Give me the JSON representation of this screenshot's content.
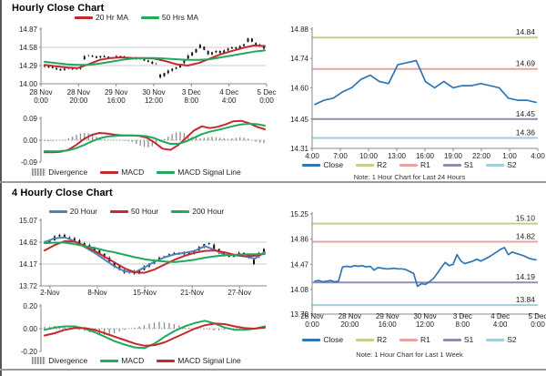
{
  "page": {
    "top_section_title": "Hourly Close Chart",
    "bottom_section_title": "4 Hourly Close Chart",
    "colors": {
      "red_ma": "#c4292e",
      "green_ma": "#22a85c",
      "blue_ma": "#4f81bd",
      "close_line": "#2e75b6",
      "r2": "#c6cd8d",
      "r1": "#e6a3a3",
      "s1": "#968bab",
      "s2": "#a3cdd9",
      "divergence": "#8c8c8c",
      "grid": "#cdcdcd",
      "axis": "#8a8a8a"
    }
  },
  "chart_data": [
    {
      "id": "hourly_close",
      "type": "candlestick",
      "title": "Hourly Close Chart",
      "y_ticks": [
        14.87,
        14.58,
        14.29,
        14.0
      ],
      "ylim": [
        14.0,
        14.87
      ],
      "gridlines": [
        14.58,
        14.29
      ],
      "x_labels": [
        "28 Nov|0:00",
        "28 Nov|20:00",
        "29 Nov|16:00",
        "30 Nov|12:00",
        "3 Dec|8:00",
        "4 Dec|4:00",
        "5 Dec|0:00"
      ],
      "close": [
        14.28,
        14.27,
        14.25,
        14.23,
        14.22,
        14.24,
        14.25,
        14.23,
        14.24,
        14.26,
        14.44,
        14.45,
        14.43,
        14.42,
        14.44,
        14.43,
        14.41,
        14.42,
        14.44,
        14.43,
        14.42,
        14.41,
        14.4,
        14.41,
        14.39,
        14.37,
        14.35,
        14.32,
        14.33,
        14.1,
        14.17,
        14.21,
        14.24,
        14.26,
        14.3,
        14.38,
        14.45,
        14.5,
        14.55,
        14.62,
        14.54,
        14.47,
        14.5,
        14.52,
        14.49,
        14.53,
        14.56,
        14.58,
        14.56,
        14.6,
        14.63,
        14.72,
        14.67,
        14.6,
        14.62,
        14.56
      ],
      "series": [
        {
          "name": "20 Hr MA",
          "color": "#c4292e",
          "values": [
            14.3,
            14.28,
            14.26,
            14.25,
            14.31,
            14.38,
            14.41,
            14.42,
            14.41,
            14.41,
            14.4,
            14.36,
            14.31,
            14.29,
            14.33,
            14.4,
            14.47,
            14.52,
            14.57,
            14.61,
            14.6
          ]
        },
        {
          "name": "50 Hrs MA",
          "color": "#22a85c",
          "values": [
            14.35,
            14.33,
            14.31,
            14.3,
            14.3,
            14.32,
            14.35,
            14.38,
            14.4,
            14.41,
            14.41,
            14.4,
            14.39,
            14.38,
            14.38,
            14.39,
            14.42,
            14.45,
            14.48,
            14.51,
            14.53
          ]
        }
      ],
      "legend": [
        {
          "label": "20 Hr MA",
          "color": "#c4292e",
          "type": "line"
        },
        {
          "label": "50 Hrs MA",
          "color": "#22a85c",
          "type": "line"
        }
      ]
    },
    {
      "id": "hourly_macd",
      "type": "bar+line",
      "y_ticks": [
        0.09,
        0.0,
        -0.09
      ],
      "ylim": [
        -0.09,
        0.09
      ],
      "divergence": [
        -0.004,
        -0.004,
        -0.003,
        -0.002,
        0.0,
        0.002,
        0.008,
        0.015,
        0.022,
        0.028,
        0.03,
        0.028,
        0.022,
        0.015,
        0.008,
        0.004,
        0.002,
        0.001,
        0.0,
        -0.001,
        -0.002,
        -0.004,
        -0.008,
        -0.015,
        -0.022,
        -0.028,
        -0.03,
        -0.025,
        -0.015,
        -0.005,
        0.005,
        0.015,
        0.025,
        0.032,
        0.035,
        0.03,
        0.022,
        0.015,
        0.01,
        0.008,
        0.01,
        0.012,
        0.014,
        0.012,
        0.01,
        0.008,
        0.006,
        0.008,
        0.01,
        0.012,
        0.01,
        0.006,
        0.0,
        -0.006,
        -0.01,
        -0.012
      ],
      "series": [
        {
          "name": "MACD",
          "color": "#c4292e",
          "values": [
            -0.05,
            -0.05,
            -0.048,
            -0.04,
            -0.02,
            0.005,
            0.022,
            0.03,
            0.027,
            0.022,
            0.02,
            0.02,
            0.018,
            0.01,
            -0.01,
            -0.035,
            -0.04,
            -0.02,
            0.01,
            0.04,
            0.057,
            0.05,
            0.055,
            0.065,
            0.078,
            0.08,
            0.07,
            0.055,
            0.045
          ]
        },
        {
          "name": "MACD Signal Line",
          "color": "#22a85c",
          "values": [
            -0.045,
            -0.046,
            -0.045,
            -0.042,
            -0.033,
            -0.02,
            -0.005,
            0.008,
            0.015,
            0.018,
            0.019,
            0.02,
            0.019,
            0.016,
            0.008,
            -0.005,
            -0.015,
            -0.015,
            -0.005,
            0.01,
            0.025,
            0.035,
            0.042,
            0.05,
            0.058,
            0.065,
            0.068,
            0.066,
            0.06
          ]
        }
      ],
      "legend": [
        {
          "label": "Divergence",
          "color": "#8c8c8c",
          "type": "bars"
        },
        {
          "label": "MACD",
          "color": "#c4292e",
          "type": "line"
        },
        {
          "label": "MACD Signal Line",
          "color": "#22a85c",
          "type": "line"
        }
      ]
    },
    {
      "id": "levels_24h",
      "type": "line",
      "note": "Note: 1 Hour Chart for Last 24 Hours",
      "y_ticks": [
        14.88,
        14.74,
        14.6,
        14.45,
        14.31
      ],
      "ylim": [
        14.31,
        14.88
      ],
      "x_labels": [
        "4:00",
        "7:00",
        "10:00",
        "13:00",
        "16:00",
        "19:00",
        "22:00",
        "1:00",
        "4:00"
      ],
      "close": [
        14.52,
        14.54,
        14.55,
        14.58,
        14.6,
        14.64,
        14.66,
        14.63,
        14.62,
        14.71,
        14.72,
        14.73,
        14.63,
        14.6,
        14.63,
        14.6,
        14.61,
        14.61,
        14.62,
        14.61,
        14.6,
        14.55,
        14.54,
        14.54,
        14.53
      ],
      "close_color": "#2e75b6",
      "levels": [
        {
          "name": "R2",
          "value": 14.84,
          "color": "#c6cd8d"
        },
        {
          "name": "R1",
          "value": 14.69,
          "color": "#e6a3a3"
        },
        {
          "name": "S1",
          "value": 14.45,
          "color": "#968bab"
        },
        {
          "name": "S2",
          "value": 14.36,
          "color": "#a3cdd9"
        }
      ],
      "legend": [
        {
          "label": "Close",
          "color": "#2e75b6",
          "type": "line"
        },
        {
          "label": "R2",
          "color": "#c6cd8d",
          "type": "line"
        },
        {
          "label": "R1",
          "color": "#e6a3a3",
          "type": "line"
        },
        {
          "label": "S1",
          "color": "#968bab",
          "type": "line"
        },
        {
          "label": "S2",
          "color": "#a3cdd9",
          "type": "line"
        }
      ]
    },
    {
      "id": "four_hourly_close",
      "type": "candlestick",
      "title": "4 Hourly Close Chart",
      "y_ticks": [
        15.07,
        14.62,
        14.17,
        13.72
      ],
      "ylim": [
        13.72,
        15.07
      ],
      "gridlines": [
        14.62,
        14.17
      ],
      "x_labels": [
        "2-Nov",
        "8-Nov",
        "15-Nov",
        "21-Nov",
        "27-Nov"
      ],
      "x_positions": [
        0.04,
        0.25,
        0.46,
        0.67,
        0.88
      ],
      "close": [
        14.62,
        14.66,
        14.74,
        14.77,
        14.72,
        14.7,
        14.66,
        14.6,
        14.56,
        14.5,
        14.45,
        14.38,
        14.3,
        14.22,
        14.12,
        14.05,
        13.99,
        14.02,
        13.97,
        14.05,
        14.12,
        14.18,
        14.25,
        14.3,
        14.33,
        14.37,
        14.4,
        14.37,
        14.42,
        14.38,
        14.45,
        14.52,
        14.58,
        14.6,
        14.48,
        14.4,
        14.35,
        14.32,
        14.36,
        14.4,
        14.36,
        14.3,
        14.17,
        14.4,
        14.48
      ],
      "series": [
        {
          "name": "20 Hour",
          "color": "#4f81bd",
          "values": [
            14.62,
            14.7,
            14.72,
            14.64,
            14.52,
            14.4,
            14.26,
            14.12,
            14.02,
            14.0,
            14.1,
            14.22,
            14.31,
            14.37,
            14.4,
            14.44,
            14.54,
            14.46,
            14.36,
            14.35,
            14.33,
            14.28,
            14.42
          ]
        },
        {
          "name": "50 Hour",
          "color": "#c4292e",
          "values": [
            14.45,
            14.56,
            14.64,
            14.63,
            14.55,
            14.44,
            14.32,
            14.2,
            14.08,
            14.0,
            13.99,
            14.06,
            14.16,
            14.26,
            14.34,
            14.4,
            14.44,
            14.45,
            14.41,
            14.36,
            14.33,
            14.34,
            14.38
          ]
        },
        {
          "name": "200 Hour",
          "color": "#22a85c",
          "values": [
            14.6,
            14.61,
            14.61,
            14.58,
            14.54,
            14.5,
            14.45,
            14.41,
            14.36,
            14.31,
            14.27,
            14.24,
            14.22,
            14.21,
            14.23,
            14.26,
            14.3,
            14.33,
            14.35,
            14.36,
            14.37,
            14.37,
            14.38
          ]
        }
      ],
      "legend": [
        {
          "label": "20 Hour",
          "color": "#4f81bd",
          "type": "line"
        },
        {
          "label": "50 Hour",
          "color": "#c4292e",
          "type": "line"
        },
        {
          "label": "200 Hour",
          "color": "#22a85c",
          "type": "line"
        }
      ]
    },
    {
      "id": "four_hourly_macd",
      "type": "bar+line",
      "y_ticks": [
        0.2,
        0.0,
        -0.2
      ],
      "ylim": [
        -0.2,
        0.2
      ],
      "divergence": [
        0.015,
        0.02,
        0.025,
        0.025,
        0.02,
        0.01,
        0.0,
        -0.01,
        -0.02,
        -0.03,
        -0.04,
        -0.05,
        -0.055,
        -0.05,
        -0.04,
        -0.025,
        -0.01,
        0.0,
        0.01,
        0.02,
        0.03,
        0.045,
        0.055,
        0.06,
        0.055,
        0.05,
        0.04,
        0.03,
        0.02,
        0.01,
        0.005,
        0.0,
        -0.005,
        -0.01,
        -0.015,
        -0.015,
        -0.01,
        -0.005,
        0.0,
        0.0,
        0.0,
        0.005,
        0.005,
        0.01,
        0.015
      ],
      "series": [
        {
          "name": "MACD",
          "color": "#22a85c",
          "values": [
            -0.01,
            0.01,
            0.02,
            0.02,
            0.0,
            -0.03,
            -0.07,
            -0.11,
            -0.14,
            -0.165,
            -0.17,
            -0.13,
            -0.07,
            -0.02,
            0.02,
            0.05,
            0.07,
            0.045,
            0.01,
            -0.01,
            -0.01,
            0.0,
            0.02
          ]
        },
        {
          "name": "MACD Signal Line",
          "color": "#c4292e",
          "values": [
            -0.06,
            -0.04,
            -0.01,
            0.005,
            0.005,
            -0.01,
            -0.04,
            -0.07,
            -0.1,
            -0.13,
            -0.15,
            -0.145,
            -0.12,
            -0.08,
            -0.04,
            0.0,
            0.03,
            0.045,
            0.04,
            0.02,
            0.005,
            0.0,
            0.01
          ]
        }
      ],
      "legend": [
        {
          "label": "Divergence",
          "color": "#8c8c8c",
          "type": "bars"
        },
        {
          "label": "MACD",
          "color": "#22a85c",
          "type": "line"
        },
        {
          "label": "MACD Signal Line",
          "color": "#c4292e",
          "type": "line"
        }
      ]
    },
    {
      "id": "levels_1w",
      "type": "line",
      "note": "Note: 1 Hour Chart for Last 1 Week",
      "y_ticks": [
        15.25,
        14.86,
        14.47,
        14.08,
        13.7
      ],
      "ylim": [
        13.7,
        15.25
      ],
      "x_labels": [
        "28 Nov|0:00",
        "28 Nov|20:00",
        "29 Nov|16:00",
        "30 Nov|12:00",
        "3 Dec|8:00",
        "4 Dec|4:00",
        "5 Dec|0:00"
      ],
      "close": [
        14.21,
        14.22,
        14.2,
        14.21,
        14.22,
        14.2,
        14.21,
        14.43,
        14.44,
        14.43,
        14.45,
        14.44,
        14.45,
        14.43,
        14.44,
        14.38,
        14.42,
        14.41,
        14.4,
        14.4,
        14.41,
        14.4,
        14.4,
        14.39,
        14.36,
        14.33,
        14.13,
        14.17,
        14.16,
        14.2,
        14.25,
        14.33,
        14.42,
        14.5,
        14.45,
        14.47,
        14.62,
        14.52,
        14.48,
        14.5,
        14.52,
        14.55,
        14.52,
        14.55,
        14.58,
        14.62,
        14.66,
        14.7,
        14.73,
        14.62,
        14.66,
        14.64,
        14.62,
        14.6,
        14.57,
        14.55,
        14.54
      ],
      "close_color": "#2e75b6",
      "levels": [
        {
          "name": "R2",
          "value": 15.1,
          "color": "#c6cd8d"
        },
        {
          "name": "R1",
          "value": 14.82,
          "color": "#e6a3a3"
        },
        {
          "name": "S1",
          "value": 14.19,
          "color": "#968bab"
        },
        {
          "name": "S2",
          "value": 13.84,
          "color": "#a3cdd9"
        }
      ],
      "legend": [
        {
          "label": "Close",
          "color": "#2e75b6",
          "type": "line"
        },
        {
          "label": "R2",
          "color": "#c6cd8d",
          "type": "line"
        },
        {
          "label": "R1",
          "color": "#e6a3a3",
          "type": "line"
        },
        {
          "label": "S1",
          "color": "#968bab",
          "type": "line"
        },
        {
          "label": "S2",
          "color": "#a3cdd9",
          "type": "line"
        }
      ]
    }
  ]
}
